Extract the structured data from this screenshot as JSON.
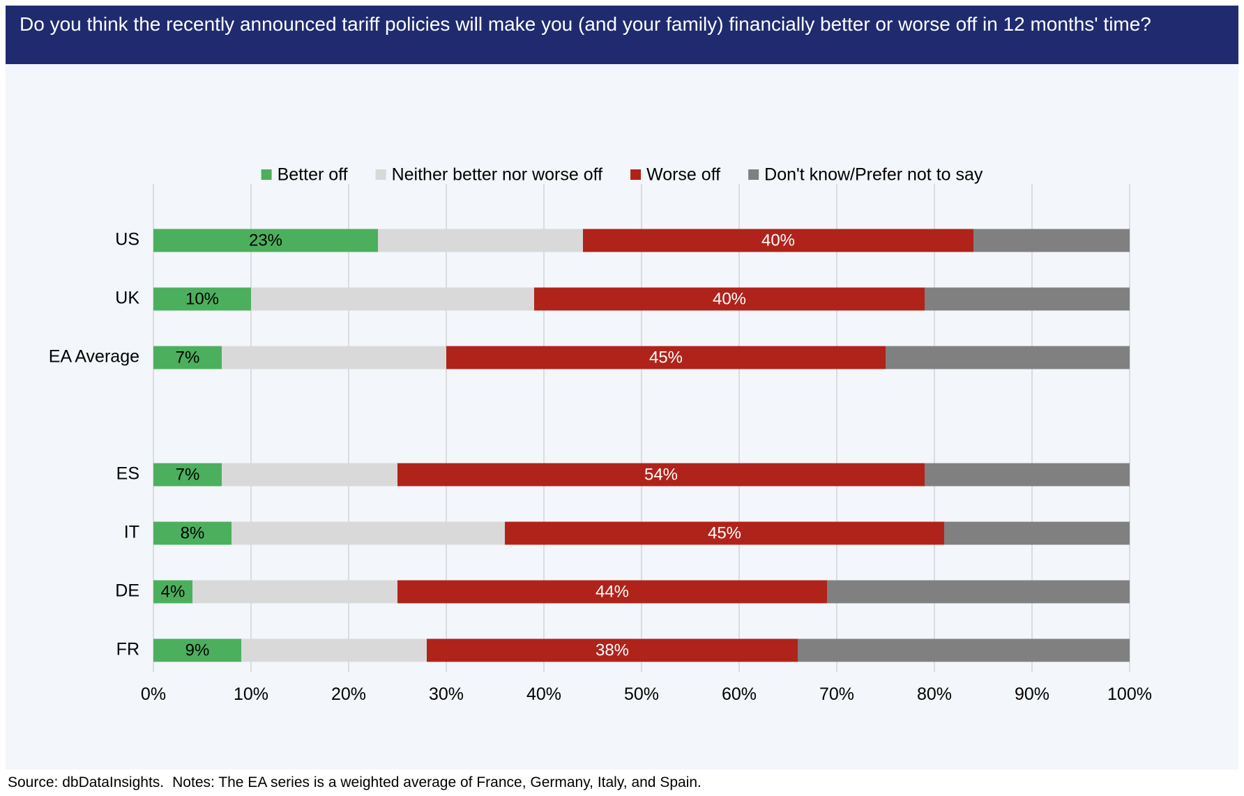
{
  "header": {
    "title": "Do you think the recently announced tariff policies will make you (and your family) financially better or worse off in 12 months' time?"
  },
  "footer": {
    "source": "Source: dbDataInsights.",
    "notes": "Notes: The EA series is a weighted average of France, Germany, Italy, and Spain."
  },
  "chart_data": {
    "type": "bar",
    "orientation": "horizontal",
    "stacked": true,
    "percent_stacked": true,
    "title": "Do you think the recently announced tariff policies will make you (and your family) financially better or worse off in 12 months' time?",
    "xlabel": "",
    "ylabel": "",
    "xlim": [
      0,
      100
    ],
    "grid": true,
    "legend_position": "top",
    "x_ticks": [
      "0%",
      "10%",
      "20%",
      "30%",
      "40%",
      "50%",
      "60%",
      "70%",
      "80%",
      "90%",
      "100%"
    ],
    "categories": [
      "US",
      "UK",
      "EA Average",
      "",
      "ES",
      "IT",
      "DE",
      "FR"
    ],
    "series": [
      {
        "name": "Better off",
        "color": "#4caf5d",
        "values": [
          23,
          10,
          7,
          null,
          7,
          8,
          4,
          9
        ],
        "labels": [
          "23%",
          "10%",
          "7%",
          "",
          "7%",
          "8%",
          "4%",
          "9%"
        ],
        "label_color": "#000000"
      },
      {
        "name": "Neither better nor worse off",
        "color": "#d9d9d9",
        "values": [
          21,
          29,
          23,
          null,
          18,
          28,
          21,
          19
        ],
        "labels": [],
        "label_color": "#000000"
      },
      {
        "name": "Worse off",
        "color": "#b0231a",
        "values": [
          40,
          40,
          45,
          null,
          54,
          45,
          44,
          38
        ],
        "labels": [
          "40%",
          "40%",
          "45%",
          "",
          "54%",
          "45%",
          "44%",
          "38%"
        ],
        "label_color": "#ffffff"
      },
      {
        "name": "Don't know/Prefer not to say",
        "color": "#808080",
        "values": [
          16,
          21,
          25,
          null,
          21,
          19,
          31,
          34
        ],
        "labels": [],
        "label_color": "#000000"
      }
    ]
  }
}
